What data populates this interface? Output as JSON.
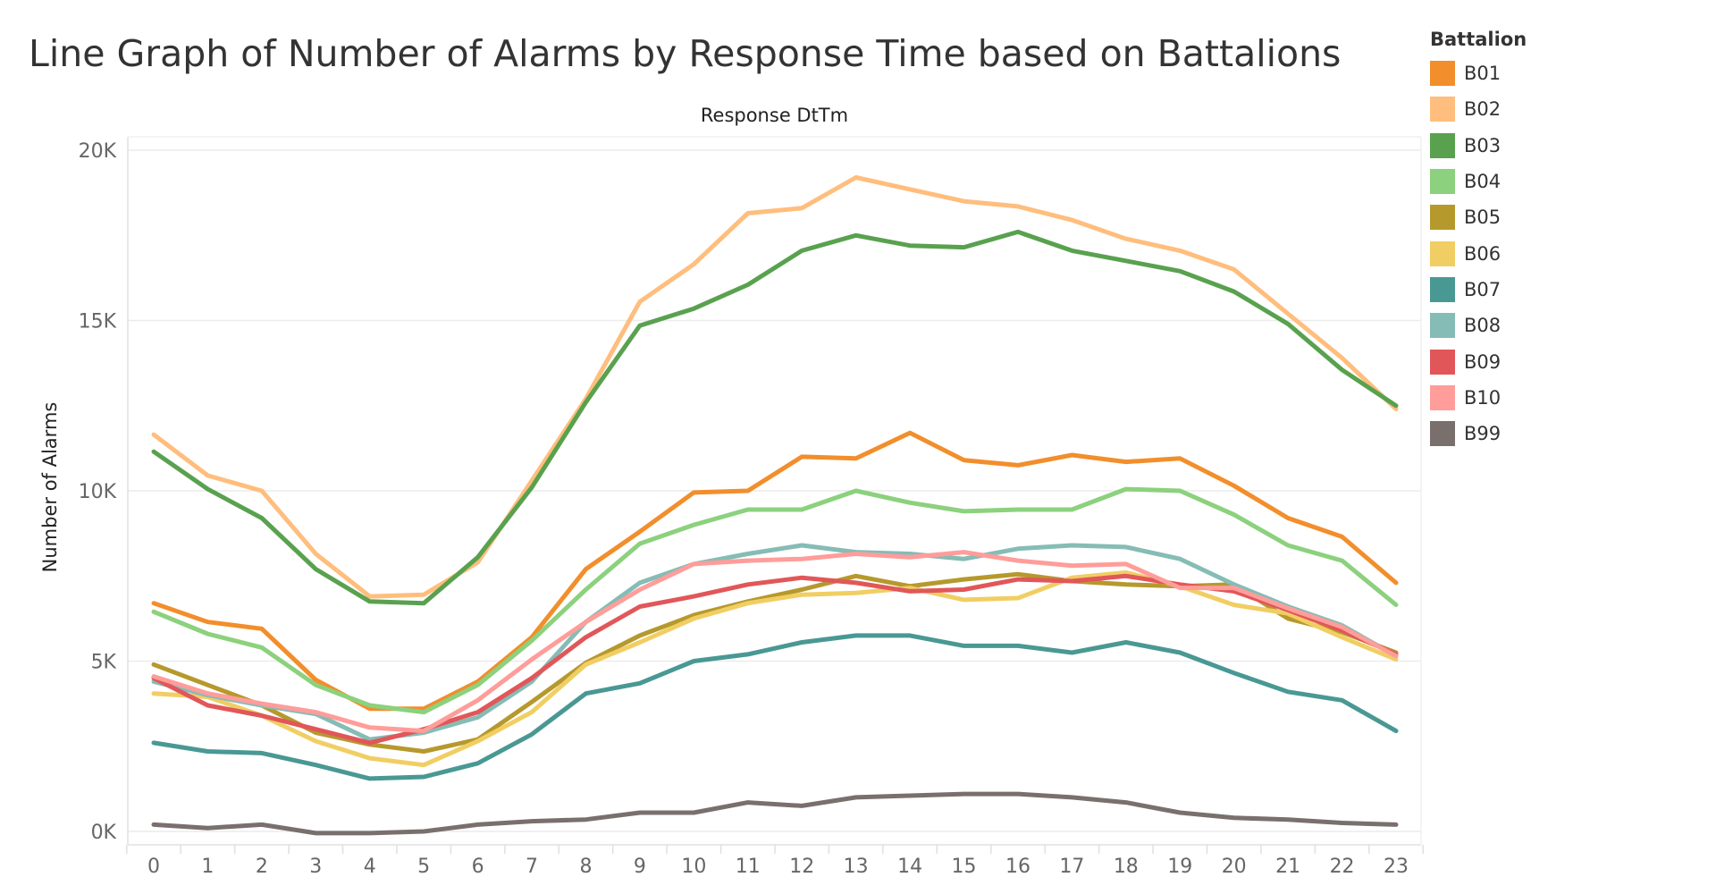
{
  "chart_data": {
    "type": "line",
    "title": "Line Graph of Number of Alarms by Response Time based on Battalions",
    "column_header": "Response DtTm",
    "ylabel": "Number of Alarms",
    "xlabel": "",
    "ylim": [
      0,
      20000
    ],
    "y_ticks": [
      {
        "value": 0,
        "label": "0K"
      },
      {
        "value": 5000,
        "label": "5K"
      },
      {
        "value": 10000,
        "label": "10K"
      },
      {
        "value": 15000,
        "label": "15K"
      },
      {
        "value": 20000,
        "label": "20K"
      }
    ],
    "x": [
      0,
      1,
      2,
      3,
      4,
      5,
      6,
      7,
      8,
      9,
      10,
      11,
      12,
      13,
      14,
      15,
      16,
      17,
      18,
      19,
      20,
      21,
      22,
      23
    ],
    "x_labels": [
      "0",
      "1",
      "2",
      "3",
      "4",
      "5",
      "6",
      "7",
      "8",
      "9",
      "10",
      "11",
      "12",
      "13",
      "14",
      "15",
      "16",
      "17",
      "18",
      "19",
      "20",
      "21",
      "22",
      "23"
    ],
    "legend_title": "Battalion",
    "legend_position": "right",
    "grid": true,
    "series": [
      {
        "name": "B01",
        "color": "#f28e2b",
        "values": [
          6700,
          6150,
          5950,
          4450,
          3600,
          3600,
          4400,
          5700,
          7700,
          8800,
          9950,
          10000,
          11000,
          10950,
          11700,
          10900,
          10750,
          11050,
          10850,
          10950,
          10150,
          9200,
          8650,
          7300
        ]
      },
      {
        "name": "B02",
        "color": "#ffbe7d",
        "values": [
          11650,
          10450,
          10000,
          8150,
          6900,
          6950,
          7900,
          10300,
          12700,
          15550,
          16650,
          18150,
          18300,
          19200,
          18850,
          18500,
          18350,
          17950,
          17400,
          17050,
          16500,
          15200,
          13900,
          12400
        ]
      },
      {
        "name": "B03",
        "color": "#59a14f",
        "values": [
          11150,
          10050,
          9200,
          7700,
          6750,
          6700,
          8050,
          10100,
          12600,
          14850,
          15350,
          16050,
          17050,
          17500,
          17200,
          17150,
          17600,
          17050,
          16750,
          16450,
          15850,
          14900,
          13550,
          12500
        ]
      },
      {
        "name": "B04",
        "color": "#8cd17d",
        "values": [
          6450,
          5800,
          5400,
          4300,
          3700,
          3500,
          4300,
          5600,
          7100,
          8450,
          9000,
          9450,
          9450,
          10000,
          9650,
          9400,
          9450,
          9450,
          10050,
          10000,
          9300,
          8400,
          7950,
          6650
        ]
      },
      {
        "name": "B05",
        "color": "#b6992d",
        "values": [
          4900,
          4300,
          3700,
          2900,
          2550,
          2350,
          2700,
          3800,
          4950,
          5750,
          6350,
          6750,
          7100,
          7500,
          7200,
          7400,
          7550,
          7350,
          7250,
          7200,
          7250,
          6250,
          5850,
          5250
        ]
      },
      {
        "name": "B06",
        "color": "#f1ce63",
        "values": [
          4050,
          3950,
          3400,
          2650,
          2150,
          1950,
          2650,
          3500,
          4900,
          5550,
          6250,
          6700,
          6950,
          7000,
          7150,
          6800,
          6850,
          7450,
          7600,
          7200,
          6650,
          6400,
          5700,
          5050
        ]
      },
      {
        "name": "B07",
        "color": "#499894",
        "values": [
          2600,
          2350,
          2300,
          1950,
          1550,
          1600,
          2000,
          2850,
          4050,
          4350,
          5000,
          5200,
          5550,
          5750,
          5750,
          5450,
          5450,
          5250,
          5550,
          5250,
          4650,
          4100,
          3850,
          2950
        ]
      },
      {
        "name": "B08",
        "color": "#86bcb6",
        "values": [
          4400,
          4000,
          3700,
          3450,
          2700,
          2900,
          3350,
          4400,
          6150,
          7300,
          7850,
          8150,
          8400,
          8200,
          8150,
          8000,
          8300,
          8400,
          8350,
          8000,
          7250,
          6600,
          6050,
          5150
        ]
      },
      {
        "name": "B09",
        "color": "#e15759",
        "values": [
          4500,
          3700,
          3400,
          3000,
          2600,
          3000,
          3500,
          4500,
          5700,
          6600,
          6900,
          7250,
          7450,
          7300,
          7050,
          7100,
          7400,
          7350,
          7500,
          7250,
          7050,
          6500,
          5900,
          5200
        ]
      },
      {
        "name": "B10",
        "color": "#ff9d9a",
        "values": [
          4550,
          4050,
          3750,
          3500,
          3050,
          2950,
          3850,
          5050,
          6150,
          7100,
          7850,
          7950,
          8000,
          8150,
          8050,
          8200,
          7950,
          7800,
          7850,
          7150,
          7150,
          6550,
          6000,
          5150
        ]
      },
      {
        "name": "B99",
        "color": "#79706e",
        "values": [
          200,
          100,
          200,
          -50,
          -50,
          0,
          200,
          300,
          350,
          550,
          550,
          850,
          750,
          1000,
          1050,
          1100,
          1100,
          1000,
          850,
          550,
          400,
          350,
          250,
          200
        ]
      }
    ]
  }
}
